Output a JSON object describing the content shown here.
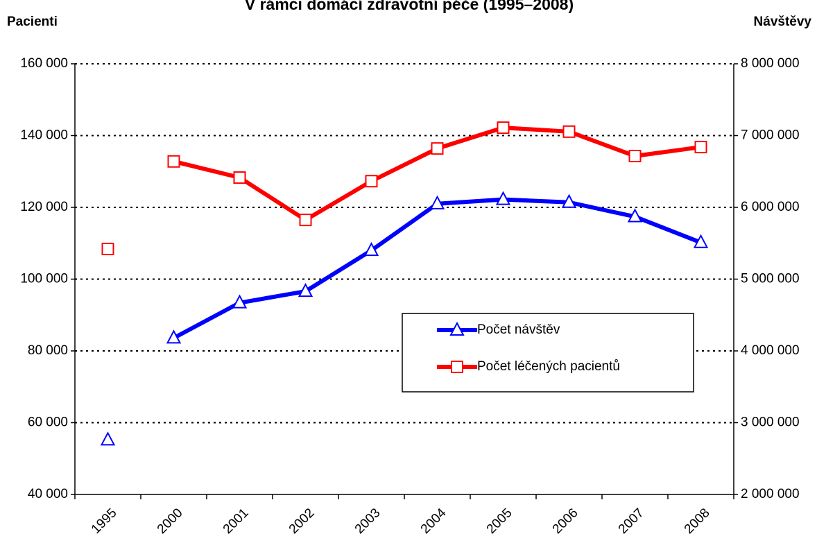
{
  "chart_data": {
    "type": "line",
    "title": "V rámci domácí zdravotní péče (1995–2008)",
    "y_label": "Pacienti",
    "y2_label": "Návštěvy",
    "categories": [
      "1995",
      "2000",
      "2001",
      "2002",
      "2003",
      "2004",
      "2005",
      "2006",
      "2007",
      "2008"
    ],
    "series": [
      {
        "name": "Počet návštěv",
        "color": "#0000ff",
        "marker": "triangle",
        "axis": "y2",
        "values": [
          2760000,
          4180000,
          4670000,
          4830000,
          5400000,
          6050000,
          6110000,
          6070000,
          5870000,
          5510000
        ]
      },
      {
        "name": "Počet léčených pacientů",
        "color": "#ff0000",
        "marker": "square",
        "axis": "y",
        "values": [
          108400,
          132800,
          128300,
          116500,
          127300,
          136400,
          142200,
          141100,
          134300,
          136800
        ]
      }
    ],
    "ylim": [
      40000,
      160000
    ],
    "yticks": [
      {
        "value": 40000,
        "label": "40 000"
      },
      {
        "value": 60000,
        "label": "60 000"
      },
      {
        "value": 80000,
        "label": "80 000"
      },
      {
        "value": 100000,
        "label": "100 000"
      },
      {
        "value": 120000,
        "label": "120 000"
      },
      {
        "value": 140000,
        "label": "140 000"
      },
      {
        "value": 160000,
        "label": "160 000"
      }
    ],
    "y2lim": [
      2000000,
      8000000
    ],
    "y2ticks": [
      {
        "value": 2000000,
        "label": "2 000 000"
      },
      {
        "value": 3000000,
        "label": "3 000 000"
      },
      {
        "value": 4000000,
        "label": "4 000 000"
      },
      {
        "value": 5000000,
        "label": "5 000 000"
      },
      {
        "value": 6000000,
        "label": "6 000 000"
      },
      {
        "value": 7000000,
        "label": "7 000 000"
      },
      {
        "value": 8000000,
        "label": "8 000 000"
      }
    ],
    "grid": true
  }
}
